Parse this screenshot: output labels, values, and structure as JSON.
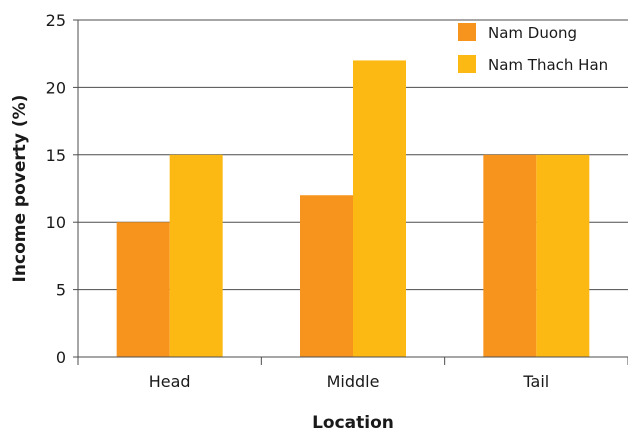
{
  "chart_data": {
    "type": "bar",
    "title": "",
    "xlabel": "Location",
    "ylabel": "Income poverty (%)",
    "categories": [
      "Head",
      "Middle",
      "Tail"
    ],
    "series": [
      {
        "name": "Nam Duong",
        "values": [
          10,
          12,
          15
        ],
        "color": "#F7941D"
      },
      {
        "name": "Nam Thach Han",
        "values": [
          15,
          22,
          15
        ],
        "color": "#FDB913"
      }
    ],
    "ylim": [
      0,
      25
    ],
    "yticks": [
      0,
      5,
      10,
      15,
      20,
      25
    ],
    "grid": true,
    "legend_position": "top-right"
  }
}
